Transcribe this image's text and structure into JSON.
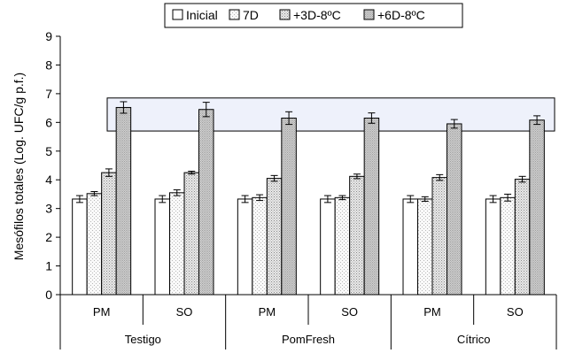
{
  "chart_data": {
    "type": "bar",
    "title": "",
    "ylabel": "Mesófilos totales (Log. UFC/g p.f.)",
    "xlabel": "",
    "ylim": [
      0,
      9
    ],
    "yticks": [
      "0",
      "1",
      "2",
      "3",
      "4",
      "5",
      "6",
      "7",
      "8",
      "9"
    ],
    "categories": [
      "PM",
      "SO",
      "PM",
      "SO",
      "PM",
      "SO"
    ],
    "groups": [
      {
        "label": "Testigo",
        "span": [
          0,
          1
        ]
      },
      {
        "label": "PomFresh",
        "span": [
          2,
          3
        ]
      },
      {
        "label": "Cítrico",
        "span": [
          4,
          5
        ]
      }
    ],
    "series": [
      {
        "name": "Inicial",
        "values": [
          3.33,
          3.33,
          3.33,
          3.33,
          3.33,
          3.33
        ],
        "errors": [
          0.12,
          0.12,
          0.12,
          0.12,
          0.12,
          0.12
        ]
      },
      {
        "name": "7D",
        "values": [
          3.52,
          3.55,
          3.38,
          3.38,
          3.33,
          3.38
        ],
        "errors": [
          0.07,
          0.1,
          0.1,
          0.07,
          0.08,
          0.12
        ]
      },
      {
        "name": "+3D-8ºC",
        "values": [
          4.25,
          4.25,
          4.05,
          4.12,
          4.08,
          4.02
        ],
        "errors": [
          0.13,
          0.05,
          0.1,
          0.08,
          0.1,
          0.1
        ]
      },
      {
        "name": "+6D-8ºC",
        "values": [
          6.52,
          6.45,
          6.15,
          6.15,
          5.95,
          6.08
        ],
        "errors": [
          0.2,
          0.25,
          0.22,
          0.18,
          0.15,
          0.15
        ]
      }
    ],
    "highlight_band": {
      "from": 5.7,
      "to": 6.85
    },
    "legend_position": "top",
    "grid": false,
    "colors": {
      "highlight_fill": "#eef1fb",
      "highlight_stroke": "#000000",
      "bar_stroke": "#000000",
      "inicial": "#ffffff",
      "sevenD": "#f7f7f7",
      "threeD": "#e2e2e2",
      "sixD": "#cfcfcf"
    }
  }
}
